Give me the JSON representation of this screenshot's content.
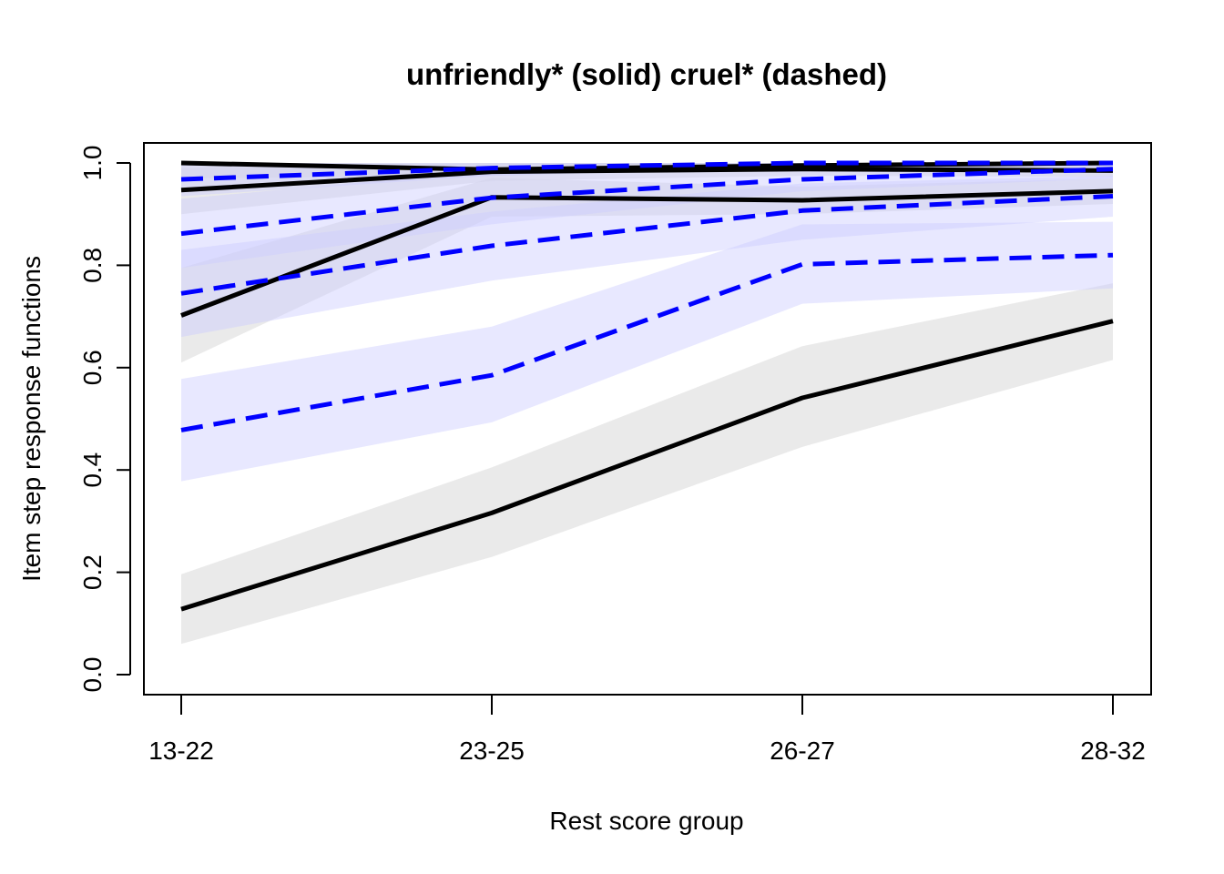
{
  "chart_data": {
    "type": "line",
    "title": "unfriendly* (solid) cruel* (dashed)",
    "xlabel": "Rest score group",
    "ylabel": "Item step response functions",
    "categories": [
      "13-22",
      "23-25",
      "26-27",
      "28-32"
    ],
    "ylim": [
      0,
      1
    ],
    "yticks": [
      "0.0",
      "0.2",
      "0.4",
      "0.6",
      "0.8",
      "1.0"
    ],
    "grid": false,
    "legend": "none",
    "colors": {
      "solid_line": "#000000",
      "solid_band": "#d9d9d9",
      "dashed_line": "#0000ff",
      "dashed_band": "#ccccff"
    },
    "series": [
      {
        "style": "solid",
        "values": [
          0.128,
          0.316,
          0.541,
          0.691
        ],
        "lower": [
          0.06,
          0.23,
          0.445,
          0.615
        ],
        "upper": [
          0.196,
          0.405,
          0.642,
          0.765
        ]
      },
      {
        "style": "solid",
        "values": [
          0.702,
          0.933,
          0.927,
          0.945
        ],
        "lower": [
          0.61,
          0.895,
          0.9,
          0.92
        ],
        "upper": [
          0.795,
          0.971,
          0.954,
          0.97
        ]
      },
      {
        "style": "solid",
        "values": [
          0.947,
          0.983,
          0.988,
          0.985
        ],
        "lower": [
          0.9,
          0.965,
          0.975,
          0.973
        ],
        "upper": [
          0.99,
          1.0,
          1.0,
          0.997
        ]
      },
      {
        "style": "solid",
        "values": [
          1.0,
          0.987,
          0.995,
          1.0
        ],
        "lower": [
          0.97,
          0.975,
          0.988,
          0.993
        ],
        "upper": [
          1.0,
          1.0,
          1.0,
          1.0
        ]
      },
      {
        "style": "dashed",
        "values": [
          0.478,
          0.585,
          0.802,
          0.82
        ],
        "lower": [
          0.378,
          0.493,
          0.725,
          0.755
        ],
        "upper": [
          0.578,
          0.68,
          0.88,
          0.885
        ]
      },
      {
        "style": "dashed",
        "values": [
          0.745,
          0.838,
          0.907,
          0.935
        ],
        "lower": [
          0.66,
          0.77,
          0.85,
          0.895
        ],
        "upper": [
          0.83,
          0.905,
          0.96,
          0.975
        ]
      },
      {
        "style": "dashed",
        "values": [
          0.862,
          0.932,
          0.968,
          0.988
        ],
        "lower": [
          0.795,
          0.88,
          0.945,
          0.97
        ],
        "upper": [
          0.93,
          0.985,
          0.99,
          1.0
        ]
      },
      {
        "style": "dashed",
        "values": [
          0.968,
          0.99,
          1.0,
          1.0
        ],
        "lower": [
          0.935,
          0.975,
          0.993,
          0.995
        ],
        "upper": [
          1.0,
          1.0,
          1.0,
          1.0
        ]
      }
    ]
  }
}
